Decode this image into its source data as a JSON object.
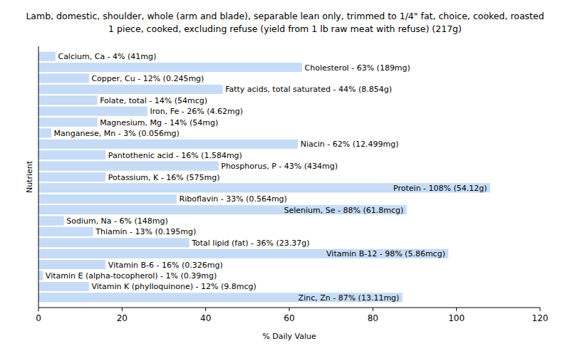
{
  "chart_data": {
    "type": "bar",
    "orientation": "horizontal",
    "title": "Lamb, domestic, shoulder, whole (arm and blade), separable lean only, trimmed to 1/4\" fat, choice, cooked, roasted",
    "subtitle": "1 piece, cooked, excluding refuse (yield from 1 lb raw meat with refuse) (217g)",
    "x_label": "% Daily Value",
    "y_label": "Nutrient",
    "categories": [
      "Calcium, Ca - 4% (41mg)",
      "Cholesterol - 63% (189mg)",
      "Copper, Cu - 12% (0.245mg)",
      "Fatty acids, total saturated - 44% (8.854g)",
      "Folate, total - 14% (54mcg)",
      "Iron, Fe - 26% (4.62mg)",
      "Magnesium, Mg - 14% (54mg)",
      "Manganese, Mn - 3% (0.056mg)",
      "Niacin - 62% (12.499mg)",
      "Pantothenic acid - 16% (1.584mg)",
      "Phosphorus, P - 43% (434mg)",
      "Potassium, K - 16% (575mg)",
      "Protein - 108% (54.12g)",
      "Riboflavin - 33% (0.564mg)",
      "Selenium, Se - 88% (61.8mcg)",
      "Sodium, Na - 6% (148mg)",
      "Thiamin - 13% (0.195mg)",
      "Total lipid (fat) - 36% (23.37g)",
      "Vitamin B-12 - 98% (5.86mcg)",
      "Vitamin B-6 - 16% (0.326mg)",
      "Vitamin E (alpha-tocopherol) - 1% (0.39mg)",
      "Vitamin K (phylloquinone) - 12% (9.8mcg)",
      "Zinc, Zn - 87% (13.11mg)"
    ],
    "values": [
      4,
      63,
      12,
      44,
      14,
      26,
      14,
      3,
      62,
      16,
      43,
      16,
      108,
      33,
      88,
      6,
      13,
      36,
      98,
      16,
      1,
      12,
      87
    ],
    "color": "#c6dcf6",
    "xlim": [
      0,
      120
    ],
    "xticks": [
      0,
      20,
      40,
      60,
      80,
      100,
      120
    ],
    "grid": false,
    "tick_labels": "x"
  }
}
